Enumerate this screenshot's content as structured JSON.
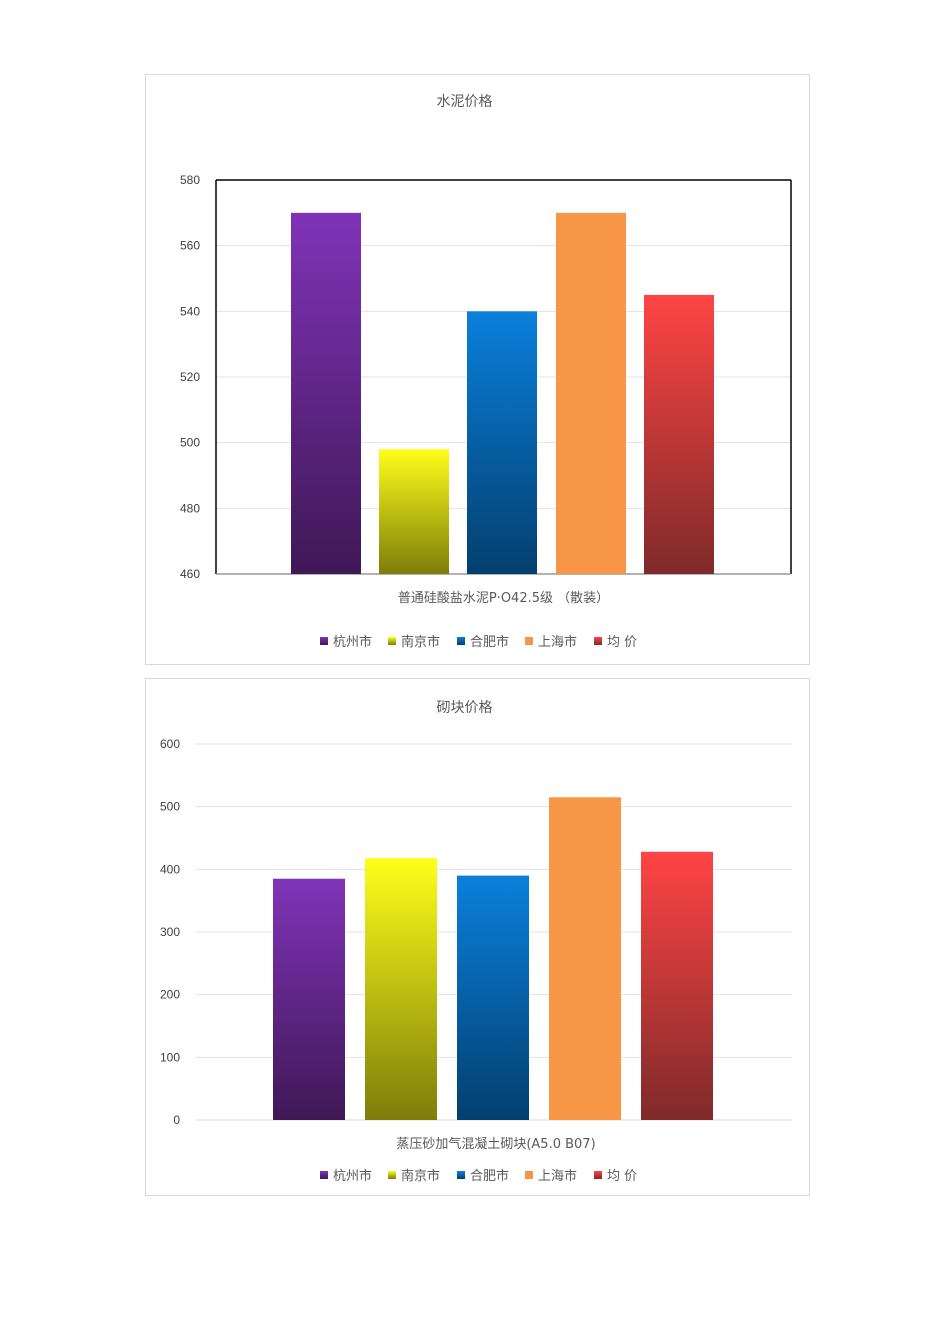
{
  "colors": {
    "purple": [
      "#8033b8",
      "#3f1856"
    ],
    "yellow": [
      "#ffff1a",
      "#7d7d0a"
    ],
    "blue": [
      "#0a80dc",
      "#033f6e"
    ],
    "orange": [
      "#f79646",
      "#f79646"
    ],
    "red": [
      "#ff4444",
      "#7f2a2a"
    ]
  },
  "chart_data": [
    {
      "type": "bar",
      "title": "水泥价格",
      "xlabel": "普通硅酸盐水泥P·O42.5级 （散装）",
      "ylabel": "",
      "categories": [
        "普通硅酸盐水泥P·O42.5级 （散装）"
      ],
      "series": [
        {
          "name": "杭州市",
          "values": [
            570
          ],
          "color": "purple"
        },
        {
          "name": "南京市",
          "values": [
            498
          ],
          "color": "yellow"
        },
        {
          "name": "合肥市",
          "values": [
            540
          ],
          "color": "blue"
        },
        {
          "name": "上海市",
          "values": [
            570
          ],
          "color": "orange"
        },
        {
          "name": "均  价",
          "values": [
            545
          ],
          "color": "red"
        }
      ],
      "ylim": [
        460,
        580
      ],
      "yticks": [
        460,
        480,
        500,
        520,
        540,
        560,
        580
      ],
      "grid": true,
      "plot_frame": true,
      "legend": "bottom"
    },
    {
      "type": "bar",
      "title": "砌块价格",
      "xlabel": "蒸压砂加气混凝土砌块(A5.0 B07)",
      "ylabel": "",
      "categories": [
        "蒸压砂加气混凝土砌块(A5.0 B07)"
      ],
      "series": [
        {
          "name": "杭州市",
          "values": [
            385
          ],
          "color": "purple"
        },
        {
          "name": "南京市",
          "values": [
            418
          ],
          "color": "yellow"
        },
        {
          "name": "合肥市",
          "values": [
            390
          ],
          "color": "blue"
        },
        {
          "name": "上海市",
          "values": [
            515
          ],
          "color": "orange"
        },
        {
          "name": "均  价",
          "values": [
            428
          ],
          "color": "red"
        }
      ],
      "ylim": [
        0,
        600
      ],
      "yticks": [
        0,
        100,
        200,
        300,
        400,
        500,
        600
      ],
      "grid": true,
      "plot_frame": false,
      "legend": "bottom"
    }
  ]
}
